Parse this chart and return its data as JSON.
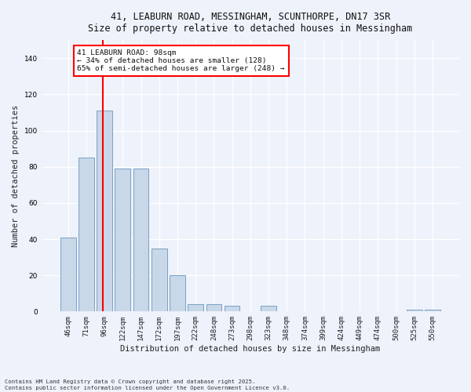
{
  "title_line1": "41, LEABURN ROAD, MESSINGHAM, SCUNTHORPE, DN17 3SR",
  "title_line2": "Size of property relative to detached houses in Messingham",
  "xlabel": "Distribution of detached houses by size in Messingham",
  "ylabel": "Number of detached properties",
  "categories": [
    "46sqm",
    "71sqm",
    "96sqm",
    "122sqm",
    "147sqm",
    "172sqm",
    "197sqm",
    "222sqm",
    "248sqm",
    "273sqm",
    "298sqm",
    "323sqm",
    "348sqm",
    "374sqm",
    "399sqm",
    "424sqm",
    "449sqm",
    "474sqm",
    "500sqm",
    "525sqm",
    "550sqm"
  ],
  "values": [
    41,
    85,
    111,
    79,
    79,
    35,
    20,
    4,
    4,
    3,
    0,
    3,
    0,
    0,
    0,
    0,
    0,
    0,
    0,
    1,
    1
  ],
  "bar_color": "#c8d8e8",
  "bar_edge_color": "#7aA0C4",
  "ylim": [
    0,
    150
  ],
  "yticks": [
    0,
    20,
    40,
    60,
    80,
    100,
    120,
    140
  ],
  "red_line_index": 2,
  "annotation_title": "41 LEABURN ROAD: 98sqm",
  "annotation_line1": "← 34% of detached houses are smaller (128)",
  "annotation_line2": "65% of semi-detached houses are larger (248) →",
  "footnote1": "Contains HM Land Registry data © Crown copyright and database right 2025.",
  "footnote2": "Contains public sector information licensed under the Open Government Licence v3.0.",
  "background_color": "#eef2fb"
}
